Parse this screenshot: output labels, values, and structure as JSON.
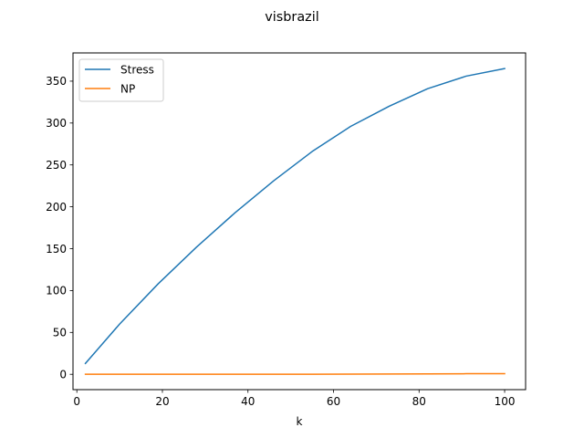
{
  "chart_data": {
    "type": "line",
    "title": "visbrazil",
    "xlabel": "k",
    "ylabel": "",
    "xlim": [
      -0.9,
      104.9
    ],
    "ylim": [
      -18.3,
      383.7
    ],
    "xticks": [
      0,
      20,
      40,
      60,
      80,
      100
    ],
    "yticks": [
      0,
      50,
      100,
      150,
      200,
      250,
      300,
      350
    ],
    "grid": false,
    "legend_position": "top-left",
    "series": [
      {
        "name": "Stress",
        "color": "#1f77b4",
        "x": [
          2,
          10,
          19,
          28,
          37,
          46,
          55,
          64,
          73,
          82,
          91,
          100
        ],
        "y": [
          13,
          60,
          108,
          152,
          193,
          231,
          266,
          296,
          320,
          341,
          356,
          365
        ]
      },
      {
        "name": "NP",
        "color": "#ff7f0e",
        "x": [
          2,
          10,
          19,
          28,
          37,
          46,
          55,
          64,
          73,
          82,
          91,
          100
        ],
        "y": [
          0.1,
          0.1,
          0.1,
          0.1,
          0.1,
          0.1,
          0.1,
          0.2,
          0.3,
          0.5,
          0.7,
          0.8
        ]
      }
    ]
  }
}
